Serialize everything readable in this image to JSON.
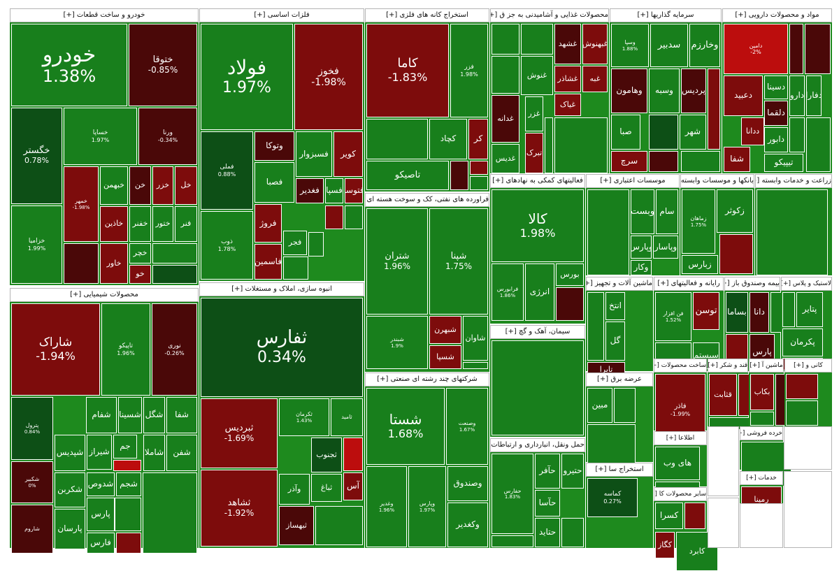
{
  "colors": {
    "g1": "#0d4f16",
    "g2": "#187f1c",
    "g3": "#229b22",
    "r1": "#4a0808",
    "r2": "#7d0c0c",
    "r3": "#bc0d0d"
  },
  "sectors": [
    {
      "title": "خودرو و ساخت قطعات [+]",
      "tiles": [
        {
          "name": "خودرو",
          "pct": "1.38%",
          "c": "g2"
        },
        {
          "name": "ختوقا",
          "pct": "-0.85%",
          "c": "r1"
        },
        {
          "name": "خگستر",
          "pct": "0.78%",
          "c": "g1"
        },
        {
          "name": "خساپا",
          "pct": "1.97%",
          "c": "g2"
        },
        {
          "name": "ورنا",
          "pct": "-0.34%",
          "c": "r1"
        },
        {
          "name": "خزامیا",
          "pct": "1.99%",
          "c": "g2"
        },
        {
          "name": "خمهر",
          "pct": "-1.98%",
          "c": "r2"
        },
        {
          "name": "خبهمن",
          "c": "g2"
        },
        {
          "name": "خن",
          "c": "r1"
        },
        {
          "name": "خزر",
          "c": "r2"
        },
        {
          "name": "خل",
          "c": "r2"
        },
        {
          "name": "خاذین",
          "c": "r2"
        },
        {
          "name": "خفنر",
          "c": "g2"
        },
        {
          "name": "ختور",
          "c": "g2"
        },
        {
          "name": "فنر",
          "c": "g2"
        },
        {
          "name": "خاور",
          "c": "r2"
        },
        {
          "name": "خچر",
          "c": "g2"
        },
        {
          "name": "خو",
          "c": "r2"
        }
      ]
    },
    {
      "title": "فلزات اساسی [+]",
      "tiles": [
        {
          "name": "فولاد",
          "pct": "1.97%",
          "c": "g2"
        },
        {
          "name": "فخوز",
          "pct": "-1.98%",
          "c": "r2"
        },
        {
          "name": "فملی",
          "pct": "0.88%",
          "c": "g1"
        },
        {
          "name": "وتوکا",
          "c": "r1"
        },
        {
          "name": "فسبزوار",
          "c": "g2"
        },
        {
          "name": "کویر",
          "c": "r2"
        },
        {
          "name": "فصبا",
          "c": "g2"
        },
        {
          "name": "فغدیر",
          "c": "r1"
        },
        {
          "name": "فسپا",
          "c": "g2"
        },
        {
          "name": "فتوسا",
          "c": "r2"
        },
        {
          "name": "ذوب",
          "pct": "1.78%",
          "c": "g2"
        },
        {
          "name": "فروژ",
          "c": "r2"
        },
        {
          "name": "فجر",
          "c": "g2"
        },
        {
          "name": "فاسمین",
          "c": "r2"
        }
      ]
    },
    {
      "title": "استخراج کانه های فلزی [+]",
      "tiles": [
        {
          "name": "کاما",
          "pct": "-1.83%",
          "c": "r2"
        },
        {
          "name": "فزر",
          "pct": "1.98%",
          "c": "g2"
        },
        {
          "name": "کچاد",
          "c": "g2"
        },
        {
          "name": "کر",
          "c": "r2"
        },
        {
          "name": "تاصیکو",
          "c": "g2"
        }
      ]
    },
    {
      "title": "محصولات غذایی و آشامیدنی به جز ق [+]",
      "tiles": [
        {
          "name": "غبهنوش",
          "c": "r2"
        },
        {
          "name": "غشهد",
          "c": "r1"
        },
        {
          "name": "غبه",
          "c": "r2"
        },
        {
          "name": "غشاذر",
          "c": "r2"
        },
        {
          "name": "غنوش",
          "c": "g2"
        },
        {
          "name": "غدانه",
          "c": "r1"
        },
        {
          "name": "غزر",
          "c": "g2"
        },
        {
          "name": "غیاک",
          "c": "r2"
        },
        {
          "name": "غدیس",
          "c": "g2"
        },
        {
          "name": "تبرک",
          "c": "r2"
        }
      ]
    },
    {
      "title": "سرمایه گذاریها [+]",
      "tiles": [
        {
          "name": "وسپا",
          "pct": "1.88%",
          "c": "g2"
        },
        {
          "name": "سدبیر",
          "c": "g2"
        },
        {
          "name": "وخارزم",
          "c": "g2"
        },
        {
          "name": "وهامون",
          "c": "r1"
        },
        {
          "name": "وسبه",
          "c": "g2"
        },
        {
          "name": "پردیس",
          "c": "r1"
        },
        {
          "name": "صبا",
          "c": "g2"
        },
        {
          "name": "شهر",
          "c": "g2"
        },
        {
          "name": "سرچ",
          "c": "r2"
        }
      ]
    },
    {
      "title": "مواد و محصولات دارویی [+]",
      "tiles": [
        {
          "name": "دامین",
          "pct": "-2%",
          "c": "r3"
        },
        {
          "name": "دارو",
          "c": "g2"
        },
        {
          "name": "دسینا",
          "c": "g2"
        },
        {
          "name": "دعبید",
          "c": "r2"
        },
        {
          "name": "دفارا",
          "c": "g2"
        },
        {
          "name": "دلقما",
          "c": "r1"
        },
        {
          "name": "ددانا",
          "c": "r2"
        },
        {
          "name": "دابور",
          "c": "g2"
        },
        {
          "name": "شفا",
          "c": "r2"
        },
        {
          "name": "تیپیکو",
          "c": "g2"
        }
      ]
    },
    {
      "title": "محصولات شیمیایی [+]",
      "tiles": [
        {
          "name": "شاراک",
          "pct": "-1.94%",
          "c": "r2"
        },
        {
          "name": "تاپیکو",
          "pct": "1.96%",
          "c": "g2"
        },
        {
          "name": "نوری",
          "pct": "-0.26%",
          "c": "r1"
        },
        {
          "name": "پترول",
          "pct": "0.84%",
          "c": "g1"
        },
        {
          "name": "شفام",
          "c": "g2"
        },
        {
          "name": "شسینا",
          "c": "g2"
        },
        {
          "name": "شگل",
          "c": "g2"
        },
        {
          "name": "شفا",
          "c": "g2"
        },
        {
          "name": "شپدیس",
          "c": "g2"
        },
        {
          "name": "شیراز",
          "c": "g2"
        },
        {
          "name": "جم",
          "c": "g2"
        },
        {
          "name": "شاملا",
          "c": "g2"
        },
        {
          "name": "شفن",
          "c": "g2"
        },
        {
          "name": "شکبیر",
          "pct": "0%",
          "c": "r1"
        },
        {
          "name": "شکربن",
          "c": "g2"
        },
        {
          "name": "شدوص",
          "c": "g2"
        },
        {
          "name": "شجم",
          "c": "g2"
        },
        {
          "name": "پارس",
          "c": "g2"
        },
        {
          "name": "شاروم",
          "c": "r1"
        },
        {
          "name": "پارسان",
          "c": "g2"
        },
        {
          "name": "فارس",
          "c": "g2"
        }
      ]
    },
    {
      "title": "انبوه سازی، املاک و مستغلات [+]",
      "tiles": [
        {
          "name": "ثفارس",
          "pct": "0.34%",
          "c": "g1"
        },
        {
          "name": "ثبردیس",
          "pct": "-1.69%",
          "c": "r2"
        },
        {
          "name": "ثکرمان",
          "pct": "1.43%",
          "c": "g2"
        },
        {
          "name": "ثامید",
          "c": "g2"
        },
        {
          "name": "ثشاهد",
          "pct": "-1.92%",
          "c": "r2"
        },
        {
          "name": "ثجنوب",
          "c": "g1"
        },
        {
          "name": "آس",
          "c": "r2"
        },
        {
          "name": "وآذر",
          "c": "g2"
        },
        {
          "name": "ثباغ",
          "c": "g2"
        },
        {
          "name": "ثبهساز",
          "c": "r1"
        }
      ]
    },
    {
      "title": "فراورده های نفتی، کک و سوخت هسته ای [+]",
      "tiles": [
        {
          "name": "شتران",
          "pct": "1.96%",
          "c": "g2"
        },
        {
          "name": "شپنا",
          "pct": "1.75%",
          "c": "g2"
        },
        {
          "name": "شبندر",
          "pct": "1.9%",
          "c": "g2"
        },
        {
          "name": "شبهرن",
          "c": "r2"
        },
        {
          "name": "شاوان",
          "c": "g2"
        },
        {
          "name": "شسپا",
          "c": "r2"
        }
      ]
    },
    {
      "title": "شرکتهای چند رشته ای صنعتی [+]",
      "tiles": [
        {
          "name": "شستا",
          "pct": "1.68%",
          "c": "g2"
        },
        {
          "name": "وصنعت",
          "pct": "1.67%",
          "c": "g2"
        },
        {
          "name": "وغدیر",
          "pct": "1.96%",
          "c": "g2"
        },
        {
          "name": "وپارس",
          "pct": "1.97%",
          "c": "g2"
        },
        {
          "name": "وصندوق",
          "c": "g2"
        },
        {
          "name": "وکغدیر",
          "c": "g2"
        }
      ]
    },
    {
      "title": "فعالیتهای کمکی به نهادهای [+]",
      "tiles": [
        {
          "name": "کالا",
          "pct": "1.98%",
          "c": "g2"
        },
        {
          "name": "فرابورس",
          "pct": "1.86%",
          "c": "g2"
        },
        {
          "name": "انرژی",
          "c": "g2"
        },
        {
          "name": "بورس",
          "c": "g2"
        }
      ]
    },
    {
      "title": "سیمان، آهک و گچ [+]",
      "tiles": []
    },
    {
      "title": "حمل ونقل، انبارداری و ارتباطات [+]",
      "tiles": [
        {
          "name": "حفارس",
          "pct": "1.83%",
          "c": "g2"
        },
        {
          "name": "حآفر",
          "c": "g2"
        },
        {
          "name": "حتیرو",
          "c": "g2"
        },
        {
          "name": "حآسا",
          "c": "g2"
        },
        {
          "name": "حتاید",
          "c": "g2"
        }
      ]
    },
    {
      "title": "موسسات اعتباری [+]",
      "tiles": [
        {
          "name": "وبست",
          "c": "g2"
        },
        {
          "name": "وپارس",
          "c": "g2"
        },
        {
          "name": "وکار",
          "c": "g2"
        },
        {
          "name": "سام",
          "c": "g2"
        },
        {
          "name": "وپاسار",
          "c": "g2"
        }
      ]
    },
    {
      "title": "بانکها و موسسات وابسته [+]",
      "tiles": [
        {
          "name": "زکوثر",
          "c": "g2"
        },
        {
          "name": "زماهان",
          "pct": "1.75%",
          "c": "g2"
        },
        {
          "name": "زبارس",
          "c": "g2"
        }
      ]
    },
    {
      "title": "زراعت و خدمات وابسته [+]",
      "tiles": []
    },
    {
      "title": "ماشین آلات و تجهیز [+]",
      "tiles": [
        {
          "name": "انتخ",
          "c": "g2"
        },
        {
          "name": "گل",
          "c": "g2"
        },
        {
          "name": "تابرا",
          "c": "r1"
        }
      ]
    },
    {
      "title": "رایانه و فعالیتهای [+]",
      "tiles": [
        {
          "name": "فن افزار",
          "pct": "1.52%",
          "c": "g2"
        },
        {
          "name": "توسن",
          "c": "r2"
        },
        {
          "name": "سیستم",
          "c": "g2"
        }
      ]
    },
    {
      "title": "بیمه وصندوق باز [+]",
      "tiles": [
        {
          "name": "بساما",
          "c": "g1"
        },
        {
          "name": "دانا",
          "c": "r1"
        },
        {
          "name": "پارس",
          "c": "r1"
        }
      ]
    },
    {
      "title": "لاستیک و پلاس [+]",
      "tiles": [
        {
          "name": "پتایر",
          "c": "g2"
        },
        {
          "name": "پکرمان",
          "c": "g2"
        },
        {
          "name": "پلاسک",
          "c": "r2"
        }
      ]
    },
    {
      "title": "عرضه برق [+]",
      "tiles": [
        {
          "name": "مبین",
          "c": "g2"
        }
      ]
    },
    {
      "title": "ساخت محصولات [+]",
      "tiles": [
        {
          "name": "فاذر",
          "pct": "-1.99%",
          "c": "r2"
        }
      ]
    },
    {
      "title": "قند و شکر [+]",
      "tiles": [
        {
          "name": "قثابت",
          "c": "r2"
        }
      ]
    },
    {
      "title": "ماشین آ [+]",
      "tiles": [
        {
          "name": "بکاب",
          "c": "r2"
        }
      ]
    },
    {
      "title": "کانی و [+]",
      "tiles": []
    },
    {
      "title": "اطلاعا [+]",
      "tiles": [
        {
          "name": "های وب",
          "c": "g2"
        }
      ]
    },
    {
      "title": "استخراج سا [+]",
      "tiles": [
        {
          "name": "کماسه",
          "pct": "0.27%",
          "c": "g1"
        }
      ]
    },
    {
      "title": "سایر محصولات کا [+]",
      "tiles": [
        {
          "name": "کسرا",
          "c": "g2"
        },
        {
          "name": "کگاز",
          "c": "r2"
        },
        {
          "name": "کابرد",
          "c": "g2"
        }
      ]
    },
    {
      "title": "خرده فروشی [+]",
      "tiles": []
    },
    {
      "title": "خدمات [+]",
      "tiles": [
        {
          "name": "رمپنا",
          "c": "r2"
        }
      ]
    },
    {
      "title": "سایر و [+]",
      "tiles": [
        {
          "name": "نیان",
          "c": "g2"
        }
      ]
    }
  ]
}
